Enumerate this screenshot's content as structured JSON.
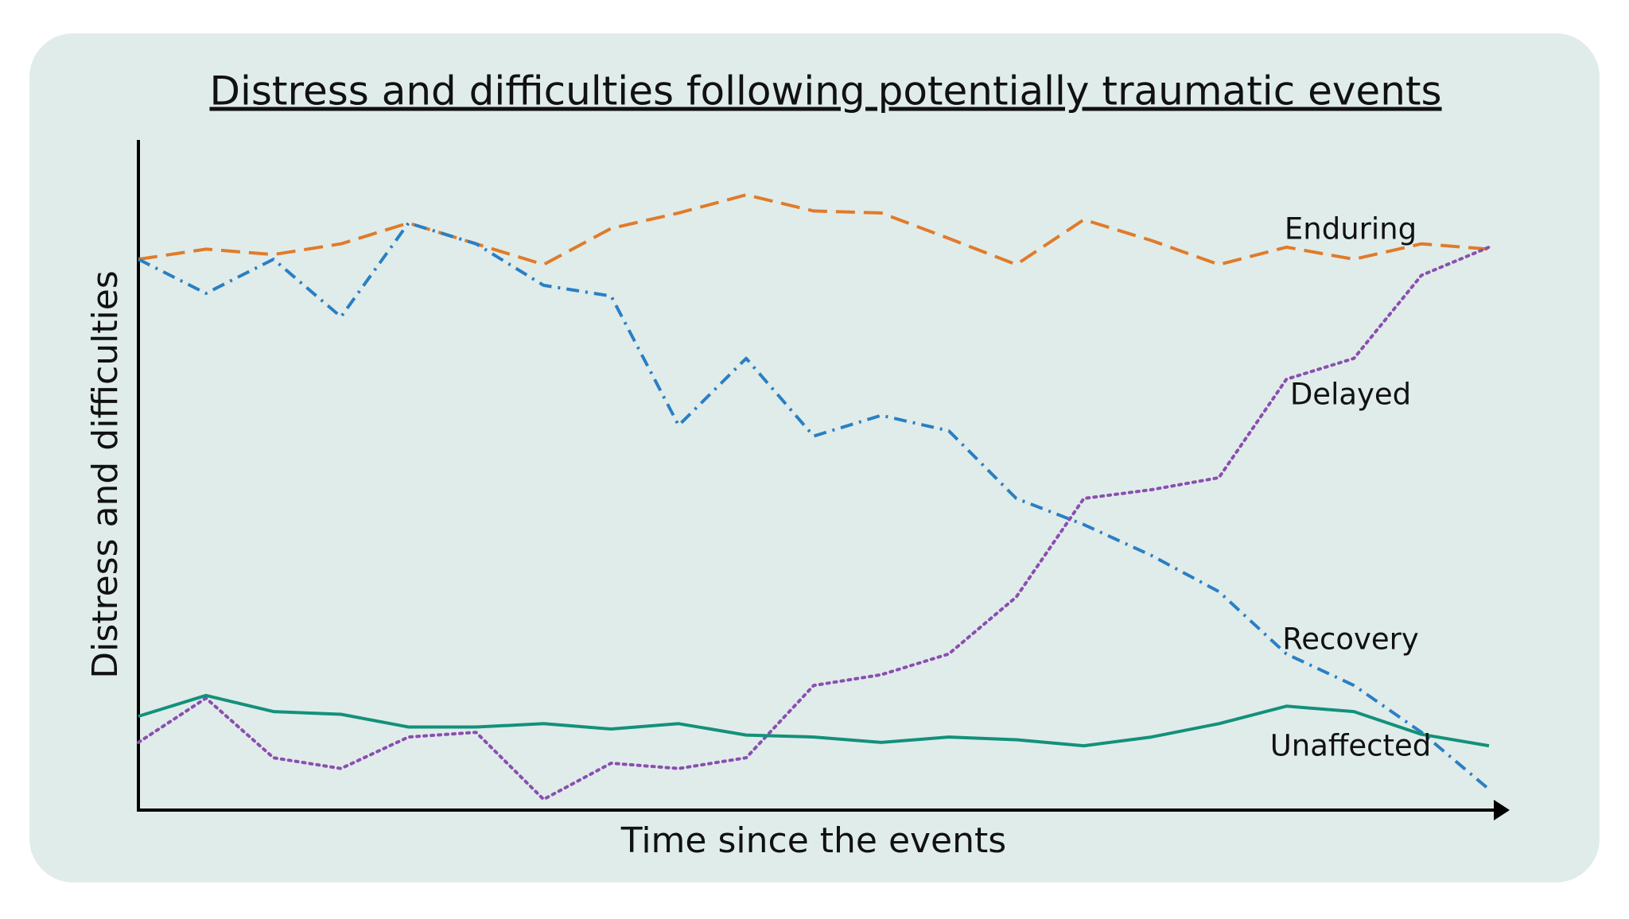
{
  "chart_data": {
    "type": "line",
    "title": "Distress and difficulties following potentially traumatic events",
    "x_label": "Time since the events",
    "y_label": "Distress and difficulties",
    "x": [
      0,
      5,
      10,
      15,
      20,
      25,
      30,
      35,
      40,
      45,
      50,
      55,
      60,
      65,
      70,
      75,
      80,
      85,
      90,
      95,
      100
    ],
    "xlim": [
      0,
      100
    ],
    "ylim": [
      0,
      100
    ],
    "series": [
      {
        "name": "Enduring",
        "color": "#e07b2a",
        "dash": "dashed",
        "values": [
          82.2,
          83.7,
          82.9,
          84.5,
          87.6,
          84.5,
          81.4,
          86.8,
          89.1,
          91.8,
          89.4,
          89.1,
          85.3,
          81.4,
          88.1,
          85.0,
          81.4,
          84.0,
          82.2,
          84.5,
          83.7
        ]
      },
      {
        "name": "Delayed",
        "color": "#8a4fb0",
        "dash": "dotted",
        "values": [
          10.1,
          16.7,
          7.8,
          6.2,
          10.9,
          11.6,
          1.6,
          7.0,
          6.2,
          7.8,
          18.6,
          20.2,
          23.3,
          31.8,
          46.5,
          47.8,
          49.6,
          64.3,
          67.4,
          79.8,
          84.0
        ]
      },
      {
        "name": "Recovery",
        "color": "#2a7fc4",
        "dash": "dashdot",
        "values": [
          82.2,
          77.1,
          82.2,
          73.6,
          87.6,
          84.5,
          78.3,
          76.7,
          57.4,
          67.4,
          55.8,
          58.9,
          56.6,
          46.5,
          42.6,
          38.0,
          32.6,
          23.3,
          18.6,
          11.6,
          3.1
        ]
      },
      {
        "name": "Unaffected",
        "color": "#13917a",
        "dash": "solid",
        "values": [
          14.0,
          17.1,
          14.7,
          14.3,
          12.4,
          12.4,
          12.9,
          12.1,
          12.9,
          11.2,
          10.9,
          10.1,
          10.9,
          10.5,
          9.6,
          10.9,
          12.9,
          15.5,
          14.7,
          11.3,
          9.6
        ]
      }
    ]
  }
}
